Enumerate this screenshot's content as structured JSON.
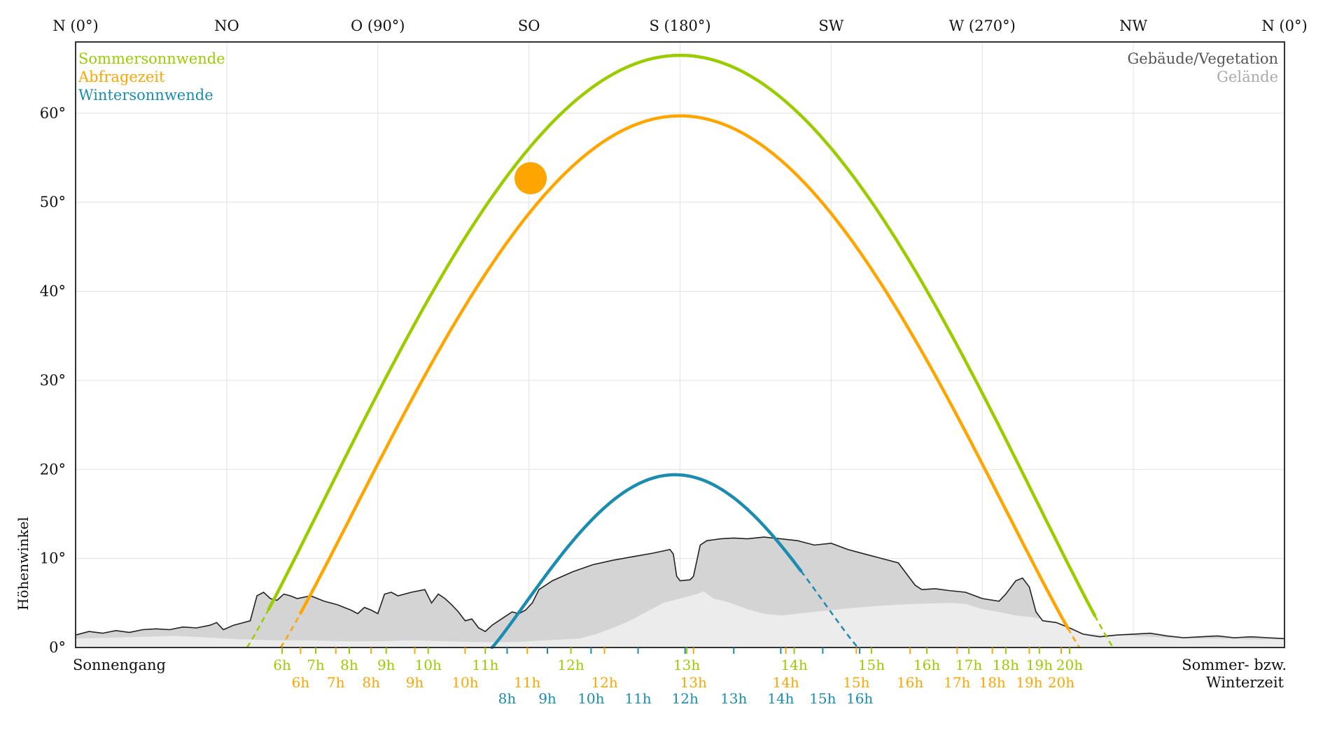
{
  "chart_data": {
    "type": "line",
    "title": "",
    "ylabel": "Höhenwinkel",
    "xlabel": "",
    "xlim": [
      0,
      360
    ],
    "ylim": [
      0,
      68
    ],
    "grid": true,
    "x_ticks": [
      {
        "value": 0,
        "label": "N (0°)"
      },
      {
        "value": 45,
        "label": "NO"
      },
      {
        "value": 90,
        "label": "O (90°)"
      },
      {
        "value": 135,
        "label": "SO"
      },
      {
        "value": 180,
        "label": "S (180°)"
      },
      {
        "value": 225,
        "label": "SW"
      },
      {
        "value": 270,
        "label": "W (270°)"
      },
      {
        "value": 315,
        "label": "NW"
      },
      {
        "value": 360,
        "label": "N (0°)"
      }
    ],
    "y_ticks": [
      {
        "value": 0,
        "label": "0°"
      },
      {
        "value": 10,
        "label": "10°"
      },
      {
        "value": 20,
        "label": "20°"
      },
      {
        "value": 30,
        "label": "30°"
      },
      {
        "value": 40,
        "label": "40°"
      },
      {
        "value": 50,
        "label": "50°"
      },
      {
        "value": 60,
        "label": "60°"
      }
    ],
    "legend_left": [
      {
        "label": "Sommersonnwende",
        "color": "#9acd00"
      },
      {
        "label": "Abfragezeit",
        "color": "#ffa500"
      },
      {
        "label": "Wintersonnwende",
        "color": "#1a8caf"
      }
    ],
    "legend_right": [
      {
        "label": "Gebäude/Vegetation",
        "color": "#555555"
      },
      {
        "label": "Gelände",
        "color": "#aaaaaa"
      }
    ],
    "bottom_left_label": "Sonnengang",
    "bottom_right_label": [
      "Sommer- bzw.",
      "Winterzeit"
    ],
    "series": [
      {
        "name": "Sommersonnwende",
        "color": "#9acd00",
        "max_azimuth": 180,
        "max_elevation": 66.5,
        "rise_azimuth": 51,
        "set_azimuth": 309,
        "visible_from": 57.5,
        "visible_to": 303.5
      },
      {
        "name": "Abfragezeit",
        "color": "#ffa500",
        "max_azimuth": 180,
        "max_elevation": 59.7,
        "rise_azimuth": 61,
        "set_azimuth": 299,
        "visible_from": 67,
        "visible_to": 295.5
      },
      {
        "name": "Wintersonnwende",
        "color": "#1a8caf",
        "max_azimuth": 180,
        "max_elevation": 19.4,
        "rise_azimuth": 124,
        "set_azimuth": 233,
        "visible_from": 124,
        "visible_to": 216
      }
    ],
    "current_sun": {
      "azimuth": 135.5,
      "elevation": 52.7,
      "color": "#ffa500"
    },
    "hour_labels": {
      "summer": {
        "color": "#9acd00",
        "items": [
          {
            "azimuth": 61.5,
            "label": "6h"
          },
          {
            "azimuth": 71.5,
            "label": "7h"
          },
          {
            "azimuth": 81.5,
            "label": "8h"
          },
          {
            "azimuth": 92.5,
            "label": "9h"
          },
          {
            "azimuth": 105,
            "label": "10h"
          },
          {
            "azimuth": 122,
            "label": "11h"
          },
          {
            "azimuth": 147.5,
            "label": "12h"
          },
          {
            "azimuth": 182,
            "label": "13h"
          },
          {
            "azimuth": 214,
            "label": "14h"
          },
          {
            "azimuth": 237,
            "label": "15h"
          },
          {
            "azimuth": 253.5,
            "label": "16h"
          },
          {
            "azimuth": 266,
            "label": "17h"
          },
          {
            "azimuth": 277,
            "label": "18h"
          },
          {
            "azimuth": 287,
            "label": "19h"
          },
          {
            "azimuth": 296,
            "label": "20h"
          }
        ]
      },
      "query": {
        "color": "#ffa500",
        "items": [
          {
            "azimuth": 67,
            "label": "6h"
          },
          {
            "azimuth": 77.5,
            "label": "7h"
          },
          {
            "azimuth": 88,
            "label": "8h"
          },
          {
            "azimuth": 101,
            "label": "9h"
          },
          {
            "azimuth": 116,
            "label": "10h"
          },
          {
            "azimuth": 134.5,
            "label": "11h"
          },
          {
            "azimuth": 157.5,
            "label": "12h"
          },
          {
            "azimuth": 184,
            "label": "13h"
          },
          {
            "azimuth": 211.5,
            "label": "14h"
          },
          {
            "azimuth": 232.5,
            "label": "15h"
          },
          {
            "azimuth": 248.5,
            "label": "16h"
          },
          {
            "azimuth": 262.5,
            "label": "17h"
          },
          {
            "azimuth": 273,
            "label": "18h"
          },
          {
            "azimuth": 284,
            "label": "19h"
          },
          {
            "azimuth": 293.5,
            "label": "20h"
          }
        ]
      },
      "winter": {
        "color": "#1a8caf",
        "items": [
          {
            "azimuth": 128.5,
            "label": "8h"
          },
          {
            "azimuth": 140.5,
            "label": "9h"
          },
          {
            "azimuth": 153.5,
            "label": "10h"
          },
          {
            "azimuth": 167.5,
            "label": "11h"
          },
          {
            "azimuth": 181.5,
            "label": "12h"
          },
          {
            "azimuth": 196,
            "label": "13h"
          },
          {
            "azimuth": 210,
            "label": "14h"
          },
          {
            "azimuth": 222.5,
            "label": "15h"
          },
          {
            "azimuth": 233.5,
            "label": "16h"
          }
        ]
      }
    },
    "horizon_buildings": [
      [
        0,
        1.4
      ],
      [
        4,
        1.8
      ],
      [
        8,
        1.6
      ],
      [
        12,
        1.9
      ],
      [
        16,
        1.7
      ],
      [
        20,
        2.0
      ],
      [
        24,
        2.1
      ],
      [
        28,
        2.0
      ],
      [
        32,
        2.3
      ],
      [
        36,
        2.2
      ],
      [
        40,
        2.5
      ],
      [
        42,
        2.8
      ],
      [
        44,
        2.0
      ],
      [
        47,
        2.5
      ],
      [
        52,
        3.0
      ],
      [
        54,
        5.8
      ],
      [
        56,
        6.2
      ],
      [
        58,
        5.5
      ],
      [
        60,
        5.3
      ],
      [
        62,
        6.0
      ],
      [
        64,
        5.8
      ],
      [
        66,
        5.5
      ],
      [
        70,
        5.8
      ],
      [
        74,
        5.2
      ],
      [
        78,
        4.8
      ],
      [
        80,
        4.5
      ],
      [
        82,
        4.2
      ],
      [
        84,
        3.8
      ],
      [
        86,
        4.5
      ],
      [
        88,
        4.2
      ],
      [
        90,
        3.8
      ],
      [
        92,
        6.0
      ],
      [
        94,
        6.2
      ],
      [
        96,
        5.8
      ],
      [
        100,
        6.2
      ],
      [
        104,
        6.5
      ],
      [
        106,
        5.0
      ],
      [
        108,
        6.0
      ],
      [
        110,
        5.5
      ],
      [
        112,
        4.8
      ],
      [
        114,
        4.0
      ],
      [
        116,
        3.0
      ],
      [
        118,
        3.2
      ],
      [
        120,
        2.2
      ],
      [
        122,
        1.8
      ],
      [
        124,
        2.5
      ],
      [
        126,
        3.0
      ],
      [
        128,
        3.5
      ],
      [
        130,
        4.0
      ],
      [
        132,
        3.8
      ],
      [
        134,
        4.2
      ],
      [
        136,
        5.0
      ],
      [
        138,
        6.5
      ],
      [
        142,
        7.5
      ],
      [
        148,
        8.5
      ],
      [
        154,
        9.3
      ],
      [
        160,
        9.8
      ],
      [
        166,
        10.2
      ],
      [
        172,
        10.6
      ],
      [
        177,
        11.0
      ],
      [
        178,
        10.5
      ],
      [
        179,
        8.0
      ],
      [
        180,
        7.5
      ],
      [
        183,
        7.6
      ],
      [
        184,
        8.0
      ],
      [
        186,
        11.5
      ],
      [
        188,
        12.0
      ],
      [
        192,
        12.2
      ],
      [
        196,
        12.3
      ],
      [
        200,
        12.2
      ],
      [
        205,
        12.4
      ],
      [
        210,
        12.2
      ],
      [
        215,
        12.0
      ],
      [
        220,
        11.5
      ],
      [
        225,
        11.7
      ],
      [
        230,
        11.0
      ],
      [
        235,
        10.5
      ],
      [
        240,
        10.0
      ],
      [
        245,
        9.5
      ],
      [
        250,
        7.0
      ],
      [
        252,
        6.5
      ],
      [
        256,
        6.6
      ],
      [
        260,
        6.4
      ],
      [
        265,
        6.2
      ],
      [
        270,
        5.5
      ],
      [
        275,
        5.2
      ],
      [
        277,
        6.0
      ],
      [
        280,
        7.5
      ],
      [
        282,
        7.8
      ],
      [
        284,
        6.8
      ],
      [
        286,
        4.0
      ],
      [
        288,
        3.0
      ],
      [
        292,
        2.8
      ],
      [
        296,
        2.2
      ],
      [
        300,
        1.5
      ],
      [
        305,
        1.2
      ],
      [
        310,
        1.4
      ],
      [
        315,
        1.5
      ],
      [
        320,
        1.6
      ],
      [
        325,
        1.3
      ],
      [
        330,
        1.1
      ],
      [
        335,
        1.2
      ],
      [
        340,
        1.3
      ],
      [
        345,
        1.1
      ],
      [
        350,
        1.2
      ],
      [
        355,
        1.1
      ],
      [
        360,
        1.0
      ]
    ],
    "horizon_terrain": [
      [
        0,
        1.0
      ],
      [
        10,
        1.1
      ],
      [
        20,
        1.2
      ],
      [
        30,
        1.3
      ],
      [
        40,
        1.1
      ],
      [
        45,
        1.0
      ],
      [
        50,
        0.9
      ],
      [
        60,
        0.8
      ],
      [
        70,
        0.8
      ],
      [
        80,
        0.7
      ],
      [
        90,
        0.7
      ],
      [
        100,
        0.8
      ],
      [
        110,
        0.7
      ],
      [
        120,
        0.6
      ],
      [
        130,
        0.6
      ],
      [
        140,
        0.8
      ],
      [
        150,
        1.0
      ],
      [
        155,
        1.5
      ],
      [
        160,
        2.2
      ],
      [
        165,
        3.0
      ],
      [
        170,
        4.0
      ],
      [
        175,
        5.0
      ],
      [
        180,
        5.5
      ],
      [
        185,
        6.0
      ],
      [
        187,
        6.3
      ],
      [
        190,
        5.5
      ],
      [
        195,
        5.0
      ],
      [
        200,
        4.3
      ],
      [
        205,
        3.8
      ],
      [
        210,
        3.6
      ],
      [
        220,
        4.0
      ],
      [
        230,
        4.4
      ],
      [
        240,
        4.7
      ],
      [
        250,
        4.9
      ],
      [
        260,
        5.0
      ],
      [
        265,
        4.9
      ],
      [
        270,
        4.3
      ],
      [
        275,
        4.0
      ],
      [
        280,
        3.6
      ],
      [
        285,
        3.4
      ],
      [
        290,
        3.0
      ],
      [
        295,
        2.3
      ],
      [
        300,
        1.6
      ],
      [
        310,
        1.4
      ],
      [
        320,
        1.2
      ],
      [
        330,
        1.0
      ],
      [
        340,
        1.0
      ],
      [
        350,
        0.9
      ],
      [
        360,
        0.9
      ]
    ]
  }
}
